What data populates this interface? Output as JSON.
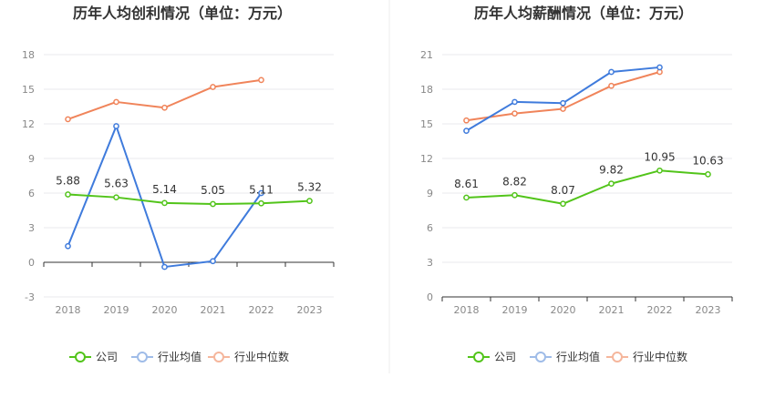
{
  "legend": [
    "公司",
    "行业均值",
    "行业中位数"
  ],
  "colors": {
    "company": "#52c41a",
    "avg": "#3f7bdc",
    "median": "#f0845a",
    "avg_legend": "#9fbce8",
    "median_legend": "#f5b69c",
    "grid": "#e8e8ee",
    "axis": "#333333",
    "divider": "#eeeeee"
  },
  "chart_data": [
    {
      "type": "line",
      "title": "历年人均创利情况（单位：万元）",
      "categories": [
        "2018",
        "2019",
        "2020",
        "2021",
        "2022",
        "2023"
      ],
      "ylim": [
        -3,
        18
      ],
      "yticks": [
        "-3",
        "0",
        "3",
        "6",
        "9",
        "12",
        "15",
        "18"
      ],
      "series": [
        {
          "name": "公司",
          "values": [
            5.88,
            5.63,
            5.14,
            5.05,
            5.11,
            5.32
          ],
          "labels": [
            "5.88",
            "5.63",
            "5.14",
            "5.05",
            "5.11",
            "5.32"
          ]
        },
        {
          "name": "行业均值",
          "values": [
            1.4,
            11.8,
            -0.4,
            0.1,
            6.0,
            null
          ]
        },
        {
          "name": "行业中位数",
          "values": [
            12.4,
            13.9,
            13.4,
            15.2,
            15.8,
            null
          ]
        }
      ]
    },
    {
      "type": "line",
      "title": "历年人均薪酬情况（单位：万元）",
      "categories": [
        "2018",
        "2019",
        "2020",
        "2021",
        "2022",
        "2023"
      ],
      "ylim": [
        0,
        21
      ],
      "yticks": [
        "0",
        "3",
        "6",
        "9",
        "12",
        "15",
        "18",
        "21"
      ],
      "series": [
        {
          "name": "公司",
          "values": [
            8.61,
            8.82,
            8.07,
            9.82,
            10.95,
            10.63
          ],
          "labels": [
            "8.61",
            "8.82",
            "8.07",
            "9.82",
            "10.95",
            "10.63"
          ]
        },
        {
          "name": "行业均值",
          "values": [
            14.4,
            16.9,
            16.8,
            19.5,
            19.9,
            null
          ]
        },
        {
          "name": "行业中位数",
          "values": [
            15.3,
            15.9,
            16.3,
            18.3,
            19.5,
            null
          ]
        }
      ]
    }
  ]
}
